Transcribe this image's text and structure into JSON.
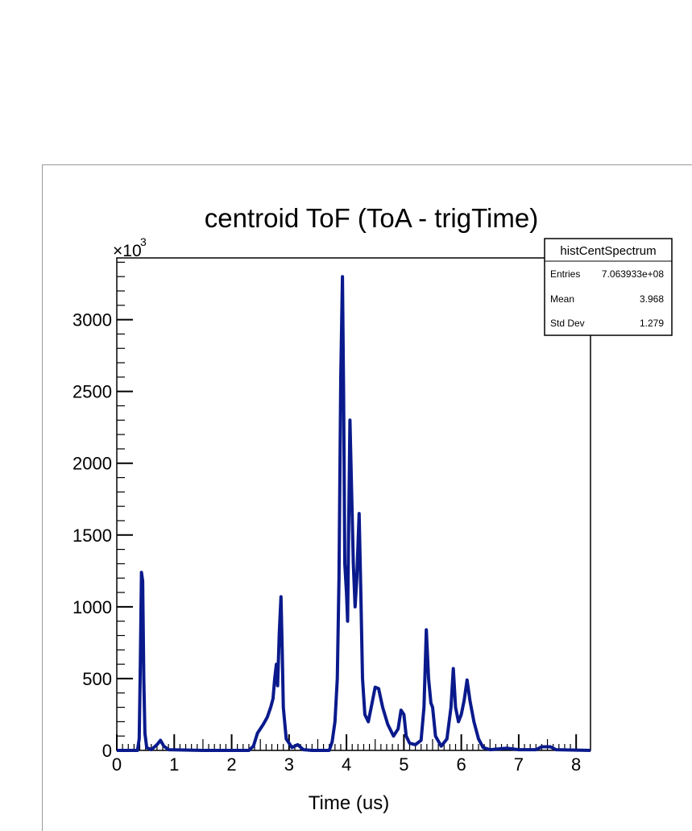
{
  "chart_data": {
    "type": "line",
    "title": "centroid ToF (ToA - trigTime)",
    "xlabel": "Time (us)",
    "ylabel": "",
    "y_multiplier": "×10",
    "y_multiplier_exp": "3",
    "xlim": [
      0,
      8.25
    ],
    "ylim": [
      0,
      3430
    ],
    "x_ticks": [
      0,
      1,
      2,
      3,
      4,
      5,
      6,
      7,
      8
    ],
    "y_ticks": [
      0,
      500,
      1000,
      1500,
      2000,
      2500,
      3000
    ],
    "grid": false,
    "legend": "none",
    "series": [
      {
        "color": "#0a1a8c",
        "points": [
          [
            0.0,
            0
          ],
          [
            0.36,
            0
          ],
          [
            0.39,
            80
          ],
          [
            0.41,
            600
          ],
          [
            0.43,
            1240
          ],
          [
            0.45,
            1180
          ],
          [
            0.47,
            500
          ],
          [
            0.49,
            120
          ],
          [
            0.52,
            20
          ],
          [
            0.6,
            5
          ],
          [
            0.7,
            40
          ],
          [
            0.76,
            70
          ],
          [
            0.82,
            30
          ],
          [
            0.9,
            5
          ],
          [
            1.5,
            0
          ],
          [
            2.3,
            0
          ],
          [
            2.38,
            30
          ],
          [
            2.45,
            120
          ],
          [
            2.55,
            180
          ],
          [
            2.62,
            230
          ],
          [
            2.68,
            300
          ],
          [
            2.72,
            360
          ],
          [
            2.75,
            500
          ],
          [
            2.78,
            600
          ],
          [
            2.8,
            450
          ],
          [
            2.83,
            820
          ],
          [
            2.86,
            1070
          ],
          [
            2.88,
            700
          ],
          [
            2.9,
            300
          ],
          [
            2.95,
            80
          ],
          [
            3.05,
            20
          ],
          [
            3.15,
            40
          ],
          [
            3.25,
            5
          ],
          [
            3.4,
            0
          ],
          [
            3.7,
            0
          ],
          [
            3.75,
            60
          ],
          [
            3.8,
            200
          ],
          [
            3.84,
            500
          ],
          [
            3.87,
            1200
          ],
          [
            3.9,
            2600
          ],
          [
            3.93,
            3300
          ],
          [
            3.95,
            2500
          ],
          [
            3.97,
            1300
          ],
          [
            4.0,
            1100
          ],
          [
            4.02,
            900
          ],
          [
            4.04,
            1600
          ],
          [
            4.06,
            2300
          ],
          [
            4.09,
            1800
          ],
          [
            4.12,
            1300
          ],
          [
            4.15,
            1000
          ],
          [
            4.18,
            1200
          ],
          [
            4.22,
            1650
          ],
          [
            4.25,
            1100
          ],
          [
            4.28,
            500
          ],
          [
            4.32,
            250
          ],
          [
            4.38,
            200
          ],
          [
            4.44,
            320
          ],
          [
            4.5,
            440
          ],
          [
            4.56,
            430
          ],
          [
            4.63,
            300
          ],
          [
            4.72,
            180
          ],
          [
            4.82,
            100
          ],
          [
            4.9,
            150
          ],
          [
            4.95,
            280
          ],
          [
            5.0,
            250
          ],
          [
            5.04,
            100
          ],
          [
            5.1,
            50
          ],
          [
            5.2,
            40
          ],
          [
            5.3,
            70
          ],
          [
            5.35,
            300
          ],
          [
            5.39,
            840
          ],
          [
            5.43,
            500
          ],
          [
            5.47,
            330
          ],
          [
            5.5,
            300
          ],
          [
            5.55,
            100
          ],
          [
            5.65,
            30
          ],
          [
            5.75,
            80
          ],
          [
            5.82,
            300
          ],
          [
            5.86,
            570
          ],
          [
            5.9,
            300
          ],
          [
            5.95,
            200
          ],
          [
            6.0,
            250
          ],
          [
            6.05,
            350
          ],
          [
            6.1,
            490
          ],
          [
            6.15,
            350
          ],
          [
            6.22,
            200
          ],
          [
            6.3,
            80
          ],
          [
            6.38,
            20
          ],
          [
            6.5,
            5
          ],
          [
            6.8,
            15
          ],
          [
            7.0,
            5
          ],
          [
            7.3,
            5
          ],
          [
            7.4,
            25
          ],
          [
            7.55,
            25
          ],
          [
            7.65,
            5
          ],
          [
            8.25,
            0
          ]
        ]
      }
    ],
    "stats_box": {
      "title": "histCentSpectrum",
      "rows": [
        {
          "label": "Entries",
          "value": "7.063933e+08"
        },
        {
          "label": "Mean",
          "value": "3.968"
        },
        {
          "label": "Std Dev",
          "value": "1.279"
        }
      ]
    }
  }
}
